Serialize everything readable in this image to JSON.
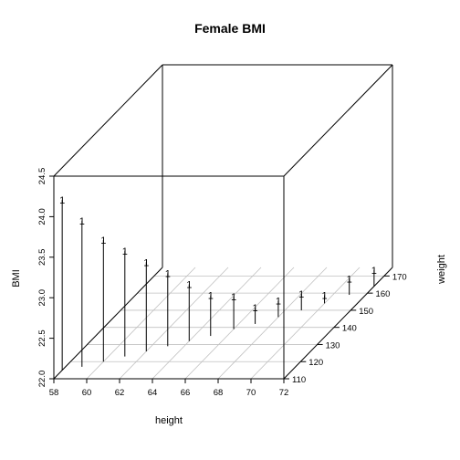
{
  "chart_data": {
    "type": "scatter3d",
    "title": "Female  BMI",
    "xlabel": "height",
    "ylabel": "weight",
    "zlabel": "BMI",
    "xlim": [
      58,
      72
    ],
    "ylim": [
      110,
      175
    ],
    "zlim": [
      22.0,
      24.5
    ],
    "x_ticks": [
      "58",
      "60",
      "62",
      "64",
      "66",
      "68",
      "70",
      "72"
    ],
    "y_ticks": [
      "110",
      "120",
      "130",
      "140",
      "150",
      "160",
      "170"
    ],
    "z_ticks": [
      "22.0",
      "22.5",
      "23.0",
      "23.5",
      "24.0",
      "24.5"
    ],
    "point_symbol": "1",
    "points": [
      {
        "x": 58,
        "y": 115,
        "z": 24.1
      },
      {
        "x": 59,
        "y": 117,
        "z": 23.8
      },
      {
        "x": 60,
        "y": 120,
        "z": 23.5
      },
      {
        "x": 61,
        "y": 123,
        "z": 23.3
      },
      {
        "x": 62,
        "y": 126,
        "z": 23.1
      },
      {
        "x": 63,
        "y": 129,
        "z": 22.9
      },
      {
        "x": 64,
        "y": 132,
        "z": 22.7
      },
      {
        "x": 65,
        "y": 135,
        "z": 22.5
      },
      {
        "x": 66,
        "y": 139,
        "z": 22.4
      },
      {
        "x": 67,
        "y": 142,
        "z": 22.2
      },
      {
        "x": 68,
        "y": 146,
        "z": 22.2
      },
      {
        "x": 69,
        "y": 150,
        "z": 22.2
      },
      {
        "x": 70,
        "y": 154,
        "z": 22.1
      },
      {
        "x": 71,
        "y": 159,
        "z": 22.2
      },
      {
        "x": 72,
        "y": 164,
        "z": 22.2
      }
    ]
  }
}
